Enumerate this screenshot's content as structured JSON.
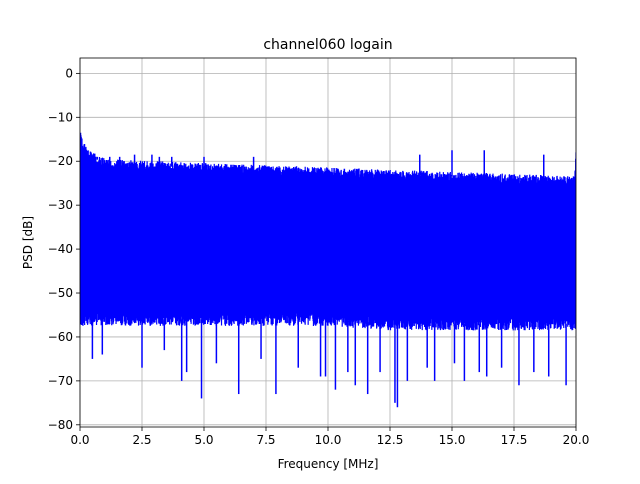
{
  "chart_data": {
    "type": "line",
    "title": "channel060 logain",
    "xlabel": "Frequency [MHz]",
    "ylabel": "PSD [dB]",
    "xlim": [
      0,
      20
    ],
    "ylim": [
      -80.5,
      3.5
    ],
    "xticks": [
      0.0,
      2.5,
      5.0,
      7.5,
      10.0,
      12.5,
      15.0,
      17.5,
      20.0
    ],
    "xtick_labels": [
      "0.0",
      "2.5",
      "5.0",
      "7.5",
      "10.0",
      "12.5",
      "15.0",
      "17.5",
      "20.0"
    ],
    "yticks": [
      0,
      -10,
      -20,
      -30,
      -40,
      -50,
      -60,
      -70,
      -80
    ],
    "ytick_labels": [
      "0",
      "−10",
      "−20",
      "−30",
      "−40",
      "−50",
      "−60",
      "−70",
      "−80"
    ],
    "grid": true,
    "series": [
      {
        "color": "#0000ff",
        "upper_envelope": [
          [
            0,
            -14
          ],
          [
            0.1,
            -16
          ],
          [
            0.3,
            -18.5
          ],
          [
            1,
            -20.5
          ],
          [
            2.5,
            -21
          ],
          [
            5,
            -21.5
          ],
          [
            7.5,
            -22
          ],
          [
            10,
            -22.5
          ],
          [
            12.5,
            -23
          ],
          [
            15,
            -23.5
          ],
          [
            17.5,
            -24
          ],
          [
            19.95,
            -24.5
          ],
          [
            20,
            -18
          ]
        ],
        "lower_envelope": [
          [
            0,
            -56
          ],
          [
            2.5,
            -56
          ],
          [
            5,
            -56
          ],
          [
            7.5,
            -56
          ],
          [
            10,
            -56
          ],
          [
            12.5,
            -57
          ],
          [
            15,
            -57
          ],
          [
            17.5,
            -57
          ],
          [
            20,
            -57
          ]
        ],
        "spikes_high": [
          [
            0.7,
            -19
          ],
          [
            1.2,
            -19
          ],
          [
            1.6,
            -19
          ],
          [
            2.2,
            -18.5
          ],
          [
            2.9,
            -18.5
          ],
          [
            3.2,
            -19
          ],
          [
            3.7,
            -19
          ],
          [
            5.0,
            -19
          ],
          [
            7.0,
            -19
          ],
          [
            13.7,
            -18.5
          ],
          [
            15.0,
            -17.5
          ],
          [
            16.3,
            -17.5
          ],
          [
            18.7,
            -18.5
          ]
        ],
        "spikes_low": [
          [
            0.5,
            -65
          ],
          [
            0.9,
            -64
          ],
          [
            2.5,
            -67
          ],
          [
            3.4,
            -63
          ],
          [
            4.1,
            -70
          ],
          [
            4.3,
            -68
          ],
          [
            4.9,
            -74
          ],
          [
            5.5,
            -66
          ],
          [
            6.4,
            -73
          ],
          [
            7.3,
            -65
          ],
          [
            7.9,
            -73
          ],
          [
            8.8,
            -67
          ],
          [
            9.7,
            -69
          ],
          [
            9.9,
            -69
          ],
          [
            10.3,
            -72
          ],
          [
            10.8,
            -68
          ],
          [
            11.1,
            -71
          ],
          [
            11.6,
            -73
          ],
          [
            12.1,
            -68
          ],
          [
            12.7,
            -75
          ],
          [
            12.8,
            -76
          ],
          [
            13.2,
            -70
          ],
          [
            14.0,
            -67
          ],
          [
            14.3,
            -70
          ],
          [
            15.1,
            -66
          ],
          [
            15.5,
            -70
          ],
          [
            16.1,
            -68
          ],
          [
            16.4,
            -69
          ],
          [
            17.0,
            -67
          ],
          [
            17.7,
            -71
          ],
          [
            18.3,
            -68
          ],
          [
            18.9,
            -69
          ],
          [
            19.6,
            -71
          ]
        ]
      }
    ]
  }
}
